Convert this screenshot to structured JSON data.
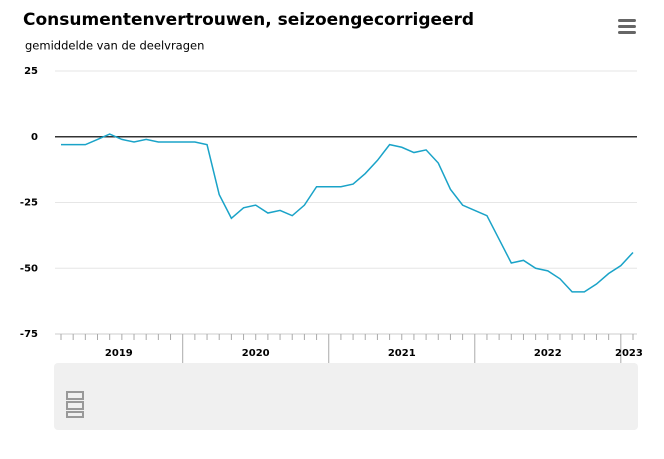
{
  "chart_data": {
    "type": "line",
    "title": "Consumentenvertrouwen, seizoengecorrigeerd",
    "subtitle": "gemiddelde van de deelvragen",
    "x_labels": [
      "2019",
      "2020",
      "2021",
      "2022",
      "2023"
    ],
    "values": [
      -3,
      -3,
      -3,
      -1,
      1,
      -1,
      -2,
      -1,
      -2,
      -2,
      -2,
      -2,
      -3,
      -22,
      -31,
      -27,
      -26,
      -29,
      -28,
      -30,
      -26,
      -19,
      -19,
      -19,
      -18,
      -14,
      -9,
      -3,
      -4,
      -6,
      -5,
      -10,
      -20,
      -26,
      -28,
      -30,
      -39,
      -48,
      -47,
      -50,
      -51,
      -54,
      -59,
      -59,
      -56,
      -52,
      -49,
      -44
    ],
    "color": "#1aa3c8",
    "ylim": [
      -75,
      25
    ],
    "yticks": [
      -75,
      -50,
      -25,
      0,
      25
    ],
    "grid": true
  }
}
